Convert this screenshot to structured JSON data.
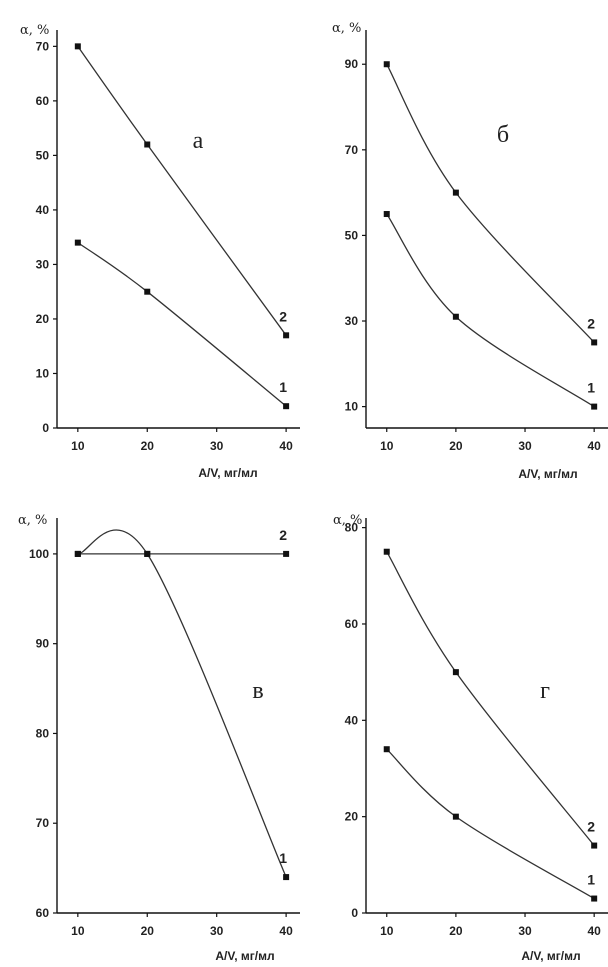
{
  "chart_data": [
    {
      "type": "line",
      "panel_label": "а",
      "ylabel": "α, %",
      "xlabel": "A/V, мг/мл",
      "xlim": [
        7,
        42
      ],
      "ylim": [
        0,
        73
      ],
      "x_ticks": [
        10,
        20,
        30,
        40
      ],
      "y_ticks": [
        0,
        10,
        20,
        30,
        40,
        50,
        60,
        70
      ],
      "y_tick_labels": [
        "0",
        "10",
        "20",
        "30",
        "40",
        "50",
        "60",
        "70"
      ],
      "series": [
        {
          "name": "1",
          "x": [
            10,
            20,
            40
          ],
          "y": [
            34,
            25,
            4
          ]
        },
        {
          "name": "2",
          "x": [
            10,
            20,
            40
          ],
          "y": [
            70,
            52,
            17
          ]
        }
      ]
    },
    {
      "type": "line",
      "panel_label": "б",
      "ylabel": "α, %",
      "xlabel": "A/V, мг/мл",
      "xlim": [
        7,
        42
      ],
      "ylim": [
        5,
        98
      ],
      "x_ticks": [
        10,
        20,
        30,
        40
      ],
      "y_ticks": [
        10,
        30,
        50,
        70,
        90
      ],
      "y_tick_labels": [
        "10",
        "30",
        "50",
        "70",
        "90"
      ],
      "series": [
        {
          "name": "1",
          "x": [
            10,
            20,
            40
          ],
          "y": [
            55,
            31,
            10
          ]
        },
        {
          "name": "2",
          "x": [
            10,
            20,
            40
          ],
          "y": [
            90,
            60,
            25
          ]
        }
      ]
    },
    {
      "type": "line",
      "panel_label": "в",
      "ylabel": "α, %",
      "xlabel": "A/V, мг/мл",
      "xlim": [
        7,
        42
      ],
      "ylim": [
        60,
        104
      ],
      "x_ticks": [
        10,
        20,
        30,
        40
      ],
      "y_ticks": [
        60,
        70,
        80,
        90,
        100
      ],
      "y_tick_labels": [
        "60",
        "70",
        "80",
        "90",
        "100"
      ],
      "series": [
        {
          "name": "1",
          "x": [
            10,
            20,
            40
          ],
          "y": [
            100,
            100,
            64
          ]
        },
        {
          "name": "2",
          "x": [
            10,
            20,
            40
          ],
          "y": [
            100,
            100,
            100
          ]
        }
      ]
    },
    {
      "type": "line",
      "panel_label": "г",
      "ylabel": "α, %",
      "xlabel": "A/V, мг/мл",
      "xlim": [
        7,
        42
      ],
      "ylim": [
        0,
        82
      ],
      "x_ticks": [
        10,
        20,
        30,
        40
      ],
      "y_ticks": [
        0,
        20,
        40,
        60,
        80
      ],
      "y_tick_labels": [
        "0",
        "20",
        "40",
        "60",
        "80"
      ],
      "series": [
        {
          "name": "1",
          "x": [
            10,
            20,
            40
          ],
          "y": [
            34,
            20,
            3
          ]
        },
        {
          "name": "2",
          "x": [
            10,
            20,
            40
          ],
          "y": [
            75,
            50,
            14
          ]
        }
      ]
    }
  ]
}
